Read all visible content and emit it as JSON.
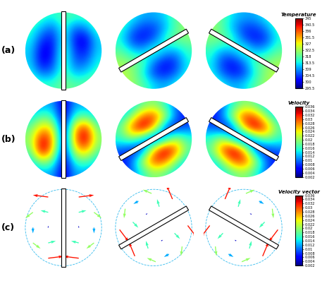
{
  "chart_data": [
    {
      "type": "heatmap",
      "label": "(a)",
      "colorbar": {
        "title": "Temperature",
        "range": [
          295.5,
          345
        ],
        "ticks": [
          345,
          340.5,
          336,
          331.5,
          327,
          322.5,
          318,
          313.5,
          309,
          304.5,
          300,
          295.5
        ]
      },
      "panels": [
        {
          "cells": [
            [
              318,
              316,
              314,
              318,
              316,
              316,
              318
            ],
            [
              316,
              310,
              306,
              316,
              306,
              308,
              316
            ],
            [
              314,
              304,
              302,
              316,
              302,
              300,
              312
            ],
            [
              312,
              300,
              302,
              318,
              304,
              302,
              312
            ],
            [
              312,
              300,
              304,
              318,
              306,
              306,
              314
            ],
            [
              314,
              306,
              308,
              318,
              310,
              312,
              316
            ],
            [
              318,
              316,
              316,
              320,
              318,
              318,
              320
            ]
          ]
        },
        {
          "cells": [
            [
              318,
              314,
              310,
              310,
              312,
              318,
              322
            ],
            [
              316,
              308,
              304,
              304,
              310,
              318,
              322
            ],
            [
              314,
              304,
              302,
              306,
              316,
              320,
              320
            ],
            [
              318,
              312,
              310,
              318,
              312,
              310,
              316
            ],
            [
              322,
              320,
              318,
              308,
              302,
              304,
              314
            ],
            [
              324,
              322,
              314,
              304,
              302,
              306,
              314
            ],
            [
              324,
              322,
              318,
              312,
              310,
              314,
              318
            ]
          ]
        },
        {
          "cells": [
            [
              322,
              318,
              312,
              310,
              310,
              314,
              318
            ],
            [
              322,
              318,
              310,
              304,
              304,
              308,
              316
            ],
            [
              320,
              320,
              316,
              306,
              302,
              304,
              314
            ],
            [
              316,
              310,
              312,
              318,
              310,
              312,
              318
            ],
            [
              314,
              304,
              302,
              308,
              318,
              320,
              322
            ],
            [
              314,
              306,
              302,
              304,
              314,
              322,
              324
            ],
            [
              318,
              314,
              310,
              312,
              318,
              322,
              324
            ]
          ]
        }
      ]
    },
    {
      "type": "heatmap",
      "label": "(b)",
      "colorbar": {
        "title": "Velocity",
        "range": [
          0.002,
          0.036
        ],
        "ticks": [
          0.036,
          0.034,
          0.032,
          0.03,
          0.028,
          0.026,
          0.024,
          0.022,
          0.02,
          0.018,
          0.016,
          0.014,
          0.012,
          0.01,
          0.008,
          0.006,
          0.004,
          0.002
        ]
      },
      "panels": [
        {
          "cells": [
            [
              0.01,
              0.012,
              0.012,
              0.004,
              0.012,
              0.012,
              0.01
            ],
            [
              0.014,
              0.018,
              0.016,
              0.004,
              0.016,
              0.018,
              0.014
            ],
            [
              0.018,
              0.026,
              0.024,
              0.004,
              0.026,
              0.032,
              0.018
            ],
            [
              0.02,
              0.034,
              0.028,
              0.004,
              0.028,
              0.036,
              0.02
            ],
            [
              0.018,
              0.036,
              0.026,
              0.004,
              0.024,
              0.028,
              0.018
            ],
            [
              0.014,
              0.022,
              0.018,
              0.004,
              0.016,
              0.018,
              0.014
            ],
            [
              0.01,
              0.012,
              0.012,
              0.004,
              0.012,
              0.012,
              0.01
            ]
          ]
        },
        {
          "cells": [
            [
              0.01,
              0.014,
              0.018,
              0.02,
              0.016,
              0.01,
              0.006
            ],
            [
              0.014,
              0.02,
              0.03,
              0.032,
              0.022,
              0.01,
              0.006
            ],
            [
              0.018,
              0.03,
              0.036,
              0.026,
              0.008,
              0.006,
              0.01
            ],
            [
              0.016,
              0.02,
              0.012,
              0.004,
              0.012,
              0.022,
              0.016
            ],
            [
              0.01,
              0.006,
              0.008,
              0.026,
              0.036,
              0.03,
              0.018
            ],
            [
              0.006,
              0.01,
              0.022,
              0.032,
              0.03,
              0.02,
              0.014
            ],
            [
              0.006,
              0.01,
              0.016,
              0.02,
              0.018,
              0.014,
              0.01
            ]
          ]
        },
        {
          "cells": [
            [
              0.006,
              0.01,
              0.016,
              0.02,
              0.018,
              0.014,
              0.01
            ],
            [
              0.006,
              0.01,
              0.022,
              0.032,
              0.03,
              0.02,
              0.014
            ],
            [
              0.01,
              0.006,
              0.008,
              0.026,
              0.036,
              0.03,
              0.018
            ],
            [
              0.016,
              0.022,
              0.012,
              0.004,
              0.012,
              0.02,
              0.016
            ],
            [
              0.018,
              0.03,
              0.036,
              0.026,
              0.008,
              0.006,
              0.01
            ],
            [
              0.014,
              0.02,
              0.03,
              0.032,
              0.022,
              0.01,
              0.006
            ],
            [
              0.01,
              0.014,
              0.018,
              0.02,
              0.016,
              0.01,
              0.006
            ]
          ]
        }
      ]
    },
    {
      "type": "quiver",
      "label": "(c)",
      "colorbar": {
        "title": "Velocity vector",
        "range": [
          0.002,
          0.036
        ],
        "ticks": [
          0.036,
          0.034,
          0.032,
          0.03,
          0.028,
          0.026,
          0.024,
          0.022,
          0.02,
          0.018,
          0.016,
          0.014,
          0.012,
          0.01,
          0.008,
          0.006,
          0.004,
          0.002
        ]
      },
      "panels": [
        {
          "x": [
            -0.8,
            -0.8,
            -0.8,
            -0.4,
            -0.4,
            -0.4,
            -0.4,
            -0.4,
            0.8,
            0.8,
            0.8,
            0.4,
            0.4,
            0.4,
            0.4,
            0.4
          ],
          "y": [
            -0.4,
            0,
            0.4,
            -0.8,
            -0.4,
            0,
            0.4,
            0.8,
            -0.4,
            0,
            0.4,
            -0.8,
            -0.4,
            0,
            0.4,
            0.8
          ],
          "u": [
            0.016,
            0,
            -0.016,
            0.032,
            0.016,
            0,
            -0.016,
            -0.032,
            -0.016,
            0,
            0.016,
            -0.032,
            -0.016,
            0,
            0.016,
            0.032
          ],
          "v": [
            -0.012,
            -0.012,
            -0.012,
            0.004,
            0.004,
            0.004,
            0.004,
            0.004,
            -0.012,
            -0.012,
            -0.012,
            0.004,
            0.004,
            0.004,
            0.004,
            0.004
          ]
        },
        {
          "x": [
            -0.746,
            -0.4,
            -0.054,
            -0.893,
            -0.546,
            -0.2,
            0.146,
            0.493,
            0.054,
            0.4,
            0.746,
            -0.493,
            -0.146,
            0.2,
            0.546,
            0.893
          ],
          "y": [
            0.493,
            0.693,
            0.893,
            -0.054,
            0.146,
            0.346,
            0.546,
            0.746,
            -0.893,
            -0.693,
            -0.493,
            -0.746,
            -0.546,
            -0.346,
            -0.146,
            0.054
          ],
          "u": [
            -0.0024,
            -0.0104,
            -0.0184,
            0.0195,
            0.0115,
            0.0035,
            -0.0045,
            -0.0125,
            -0.0184,
            -0.0104,
            -0.0024,
            -0.0125,
            -0.0045,
            0.0035,
            0.0115,
            0.0195
          ],
          "v": [
            -0.0199,
            -0.006,
            0.0079,
            -0.0257,
            -0.0119,
            0.002,
            0.0159,
            0.0297,
            0.0079,
            -0.006,
            -0.0199,
            0.0297,
            0.0159,
            0.002,
            -0.0119,
            -0.0257
          ]
        },
        {
          "x": [
            0.746,
            0.4,
            0.054,
            0.893,
            0.546,
            0.2,
            -0.146,
            -0.493,
            -0.054,
            -0.4,
            -0.746,
            0.493,
            0.146,
            -0.2,
            -0.546,
            -0.893
          ],
          "y": [
            0.493,
            0.693,
            0.893,
            -0.054,
            0.146,
            0.346,
            0.546,
            0.746,
            -0.893,
            -0.693,
            -0.493,
            -0.746,
            -0.546,
            -0.346,
            -0.146,
            0.054
          ],
          "u": [
            0.0024,
            0.0104,
            0.0184,
            -0.0195,
            -0.0115,
            -0.0035,
            0.0045,
            0.0125,
            0.0184,
            0.0104,
            0.0024,
            0.0125,
            0.0045,
            -0.0035,
            -0.0115,
            -0.0195
          ],
          "v": [
            -0.0199,
            -0.006,
            0.0079,
            -0.0257,
            -0.0119,
            0.002,
            0.0159,
            0.0297,
            0.0079,
            -0.006,
            -0.0199,
            0.0297,
            0.0159,
            0.002,
            -0.0119,
            -0.0257
          ]
        }
      ]
    }
  ]
}
